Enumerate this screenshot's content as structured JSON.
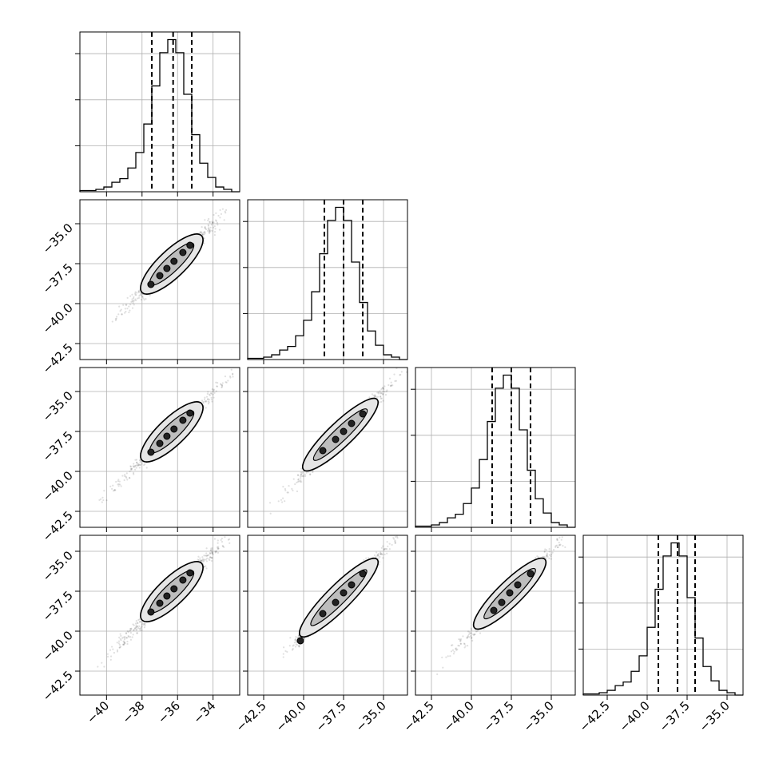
{
  "chart_data": {
    "type": "corner",
    "n_params": 4,
    "grid": true,
    "title": "",
    "parameter_labels": [
      "",
      "",
      "",
      ""
    ],
    "ranges": [
      [
        -41.5,
        -32.5
      ],
      [
        -43.5,
        -33.5
      ],
      [
        -43.5,
        -33.5
      ],
      [
        -44.0,
        -34.0
      ]
    ],
    "ticks": [
      [
        -40,
        -38,
        -36,
        -34
      ],
      [
        -42.5,
        -40.0,
        -37.5,
        -35.0
      ],
      [
        -42.5,
        -40.0,
        -37.5,
        -35.0
      ],
      [
        -42.5,
        -40.0,
        -37.5,
        -35.0
      ]
    ],
    "tick_labels": [
      [
        "−40",
        "−38",
        "−36",
        "−34"
      ],
      [
        "−42.5",
        "−40.0",
        "−37.5",
        "−35.0"
      ],
      [
        "−42.5",
        "−40.0",
        "−37.5",
        "−35.0"
      ],
      [
        "−42.5",
        "−40.0",
        "−37.5",
        "−35.0"
      ]
    ],
    "quantiles": [
      [
        -37.45,
        -36.25,
        -35.2
      ],
      [
        -38.7,
        -37.5,
        -36.3
      ],
      [
        -38.7,
        -37.5,
        -36.3
      ],
      [
        -39.3,
        -38.1,
        -37.0
      ]
    ],
    "histograms": [
      {
        "start": -41.5,
        "width": 0.45,
        "counts": [
          1,
          1,
          2,
          4,
          8,
          11,
          20,
          33,
          57,
          89,
          117,
          128,
          117,
          82,
          48,
          24,
          12,
          4,
          2,
          0
        ]
      },
      {
        "start": -43.5,
        "width": 0.5,
        "counts": [
          1,
          1,
          2,
          4,
          8,
          11,
          20,
          33,
          57,
          89,
          117,
          128,
          117,
          82,
          48,
          24,
          12,
          4,
          2,
          0
        ]
      },
      {
        "start": -43.5,
        "width": 0.5,
        "counts": [
          1,
          1,
          2,
          4,
          8,
          11,
          20,
          33,
          57,
          89,
          117,
          128,
          117,
          82,
          48,
          24,
          12,
          4,
          2,
          0
        ]
      },
      {
        "start": -44.0,
        "width": 0.5,
        "counts": [
          1,
          1,
          2,
          4,
          8,
          11,
          20,
          33,
          57,
          89,
          117,
          128,
          117,
          82,
          48,
          24,
          12,
          4,
          2,
          0
        ]
      }
    ],
    "pairs": [
      {
        "row": 1,
        "col": 0,
        "center": [
          -36.3,
          -37.55
        ],
        "end_low": [
          -40.6,
          -42.1
        ],
        "end_high": [
          -32.5,
          -33.55
        ],
        "cloud_halfwidth": 0.45,
        "contour_low": [
          -38.0,
          -39.3
        ],
        "contour_high": [
          -34.65,
          -35.75
        ],
        "contour_halfwidth": 0.55,
        "dots": [
          [
            -37.5,
            -38.8
          ],
          [
            -37.0,
            -38.25
          ],
          [
            -36.6,
            -37.8
          ],
          [
            -36.2,
            -37.35
          ],
          [
            -35.7,
            -36.8
          ],
          [
            -35.3,
            -36.35
          ]
        ]
      },
      {
        "row": 2,
        "col": 0,
        "center": [
          -36.3,
          -37.55
        ],
        "end_low": [
          -40.6,
          -42.1
        ],
        "end_high": [
          -32.5,
          -33.55
        ],
        "cloud_halfwidth": 0.45,
        "contour_low": [
          -38.0,
          -39.3
        ],
        "contour_high": [
          -34.65,
          -35.75
        ],
        "contour_halfwidth": 0.55,
        "dots": [
          [
            -37.5,
            -38.8
          ],
          [
            -37.0,
            -38.25
          ],
          [
            -36.6,
            -37.8
          ],
          [
            -36.2,
            -37.35
          ],
          [
            -35.7,
            -36.8
          ],
          [
            -35.3,
            -36.35
          ]
        ]
      },
      {
        "row": 2,
        "col": 1,
        "center": [
          -37.5,
          -37.55
        ],
        "end_low": [
          -42.7,
          -42.9
        ],
        "end_high": [
          -33.6,
          -33.5
        ],
        "cloud_halfwidth": 0.5,
        "contour_low": [
          -40.0,
          -39.9
        ],
        "contour_high": [
          -35.4,
          -35.5
        ],
        "contour_halfwidth": 0.55,
        "dots": [
          [
            -38.8,
            -38.7
          ],
          [
            -38.0,
            -38.0
          ],
          [
            -37.5,
            -37.5
          ],
          [
            -37.0,
            -37.0
          ],
          [
            -36.3,
            -36.4
          ]
        ]
      },
      {
        "row": 3,
        "col": 0,
        "center": [
          -36.3,
          -37.55
        ],
        "end_low": [
          -41.0,
          -42.9
        ],
        "end_high": [
          -32.5,
          -33.5
        ],
        "cloud_halfwidth": 0.45,
        "contour_low": [
          -38.0,
          -39.3
        ],
        "contour_high": [
          -34.65,
          -35.75
        ],
        "contour_halfwidth": 0.55,
        "dots": [
          [
            -37.5,
            -38.8
          ],
          [
            -37.0,
            -38.25
          ],
          [
            -36.6,
            -37.8
          ],
          [
            -36.2,
            -37.35
          ],
          [
            -35.7,
            -36.8
          ],
          [
            -35.3,
            -36.35
          ]
        ]
      },
      {
        "row": 3,
        "col": 1,
        "center": [
          -37.5,
          -37.55
        ],
        "end_low": [
          -42.3,
          -42.6
        ],
        "end_high": [
          -33.6,
          -33.5
        ],
        "cloud_halfwidth": 0.5,
        "contour_low": [
          -40.2,
          -40.3
        ],
        "contour_high": [
          -35.4,
          -35.5
        ],
        "contour_halfwidth": 0.55,
        "dots": [
          [
            -38.8,
            -38.9
          ],
          [
            -38.0,
            -38.2
          ],
          [
            -37.5,
            -37.6
          ],
          [
            -37.0,
            -37.1
          ],
          [
            -36.3,
            -36.4
          ],
          [
            -40.2,
            -40.6
          ]
        ]
      },
      {
        "row": 3,
        "col": 2,
        "center": [
          -37.5,
          -37.55
        ],
        "end_low": [
          -42.3,
          -42.6
        ],
        "end_high": [
          -33.6,
          -33.5
        ],
        "cloud_halfwidth": 0.5,
        "contour_low": [
          -39.8,
          -39.8
        ],
        "contour_high": [
          -35.4,
          -35.5
        ],
        "contour_halfwidth": 0.55,
        "dots": [
          [
            -38.6,
            -38.7
          ],
          [
            -38.1,
            -38.2
          ],
          [
            -37.6,
            -37.6
          ],
          [
            -37.1,
            -37.1
          ],
          [
            -36.3,
            -36.4
          ]
        ]
      }
    ]
  }
}
